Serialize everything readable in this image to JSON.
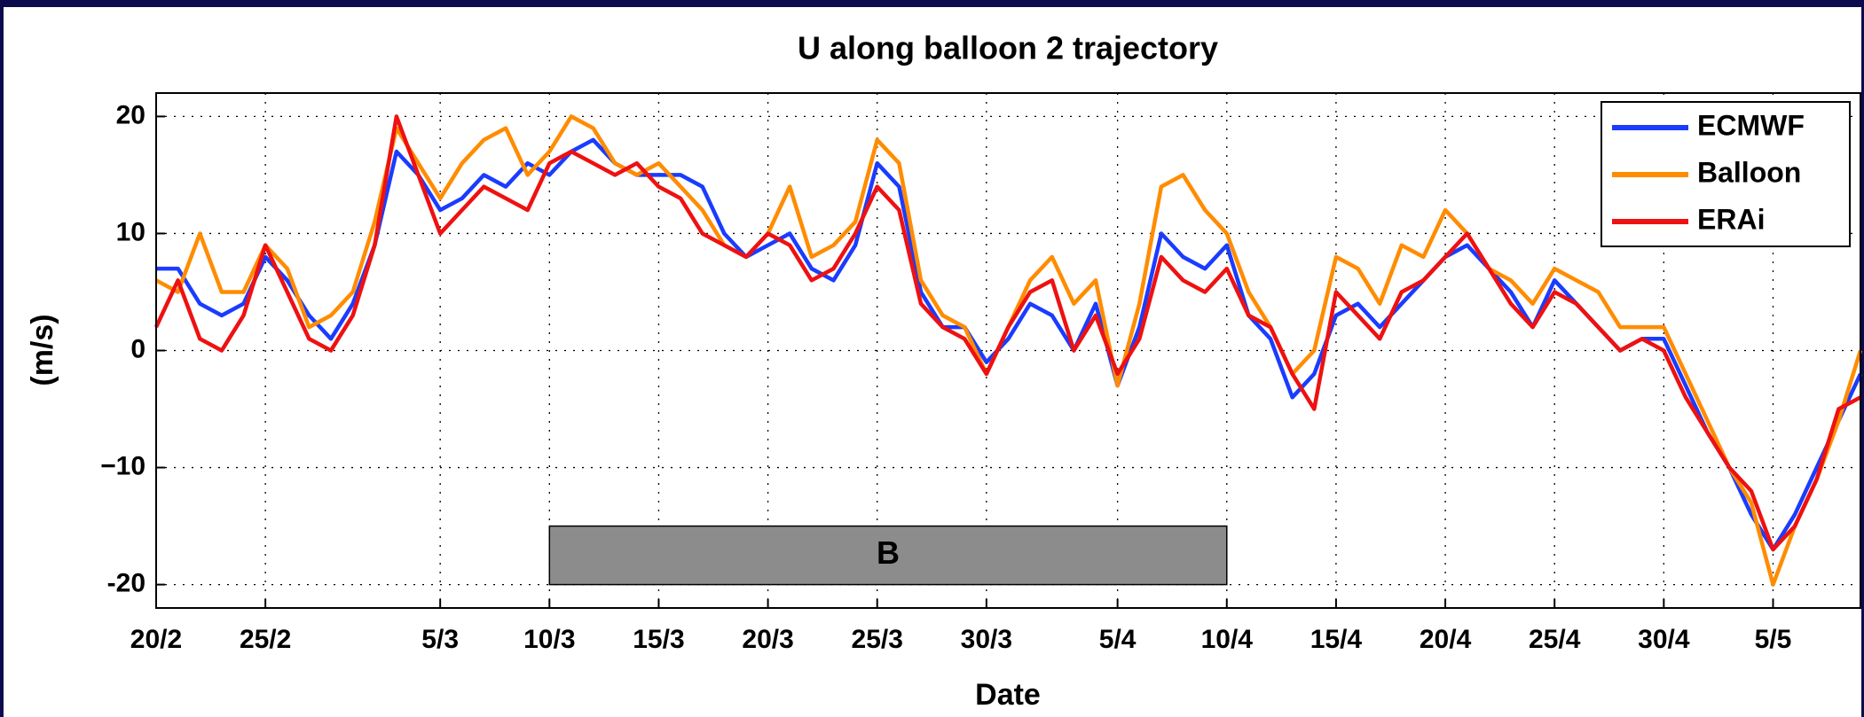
{
  "chart_data": {
    "type": "line",
    "title": "U along balloon 2 trajectory",
    "xlabel": "Date",
    "ylabel": "(m/s)",
    "x": [
      "20/2",
      "21/2",
      "22/2",
      "23/2",
      "24/2",
      "25/2",
      "26/2",
      "27/2",
      "28/2",
      "1/3",
      "2/3",
      "3/3",
      "4/3",
      "5/3",
      "6/3",
      "7/3",
      "8/3",
      "9/3",
      "10/3",
      "11/3",
      "12/3",
      "13/3",
      "14/3",
      "15/3",
      "16/3",
      "17/3",
      "18/3",
      "19/3",
      "20/3",
      "21/3",
      "22/3",
      "23/3",
      "24/3",
      "25/3",
      "26/3",
      "27/3",
      "28/3",
      "29/3",
      "30/3",
      "31/3",
      "1/4",
      "2/4",
      "3/4",
      "4/4",
      "5/4",
      "6/4",
      "7/4",
      "8/4",
      "9/4",
      "10/4",
      "11/4",
      "12/4",
      "13/4",
      "14/4",
      "15/4",
      "16/4",
      "17/4",
      "18/4",
      "19/4",
      "20/4",
      "21/4",
      "22/4",
      "23/4",
      "24/4",
      "25/4",
      "26/4",
      "27/4",
      "28/4",
      "29/4",
      "30/4",
      "1/5",
      "2/5",
      "3/5",
      "4/5",
      "5/5",
      "6/5",
      "7/5",
      "8/5",
      "9/5"
    ],
    "series": [
      {
        "name": "ECMWF",
        "color": "#1a3cff",
        "values": [
          7,
          7,
          4,
          3,
          4,
          8,
          6,
          3,
          1,
          4,
          9,
          17,
          15,
          12,
          13,
          15,
          14,
          16,
          15,
          17,
          18,
          16,
          15,
          15,
          15,
          14,
          10,
          8,
          9,
          10,
          7,
          6,
          9,
          16,
          14,
          5,
          2,
          2,
          -1,
          1,
          4,
          3,
          0,
          4,
          -3,
          2,
          10,
          8,
          7,
          9,
          3,
          1,
          -4,
          -2,
          3,
          4,
          2,
          4,
          6,
          8,
          9,
          7,
          5,
          2,
          6,
          4,
          2,
          0,
          1,
          1,
          -3,
          -7,
          -10,
          -14,
          -17,
          -14,
          -10,
          -6,
          -2
        ]
      },
      {
        "name": "Balloon",
        "color": "#ff8c00",
        "values": [
          6,
          5,
          10,
          5,
          5,
          9,
          7,
          2,
          3,
          5,
          11,
          19,
          16,
          13,
          16,
          18,
          19,
          15,
          17,
          20,
          19,
          16,
          15,
          16,
          14,
          12,
          9,
          8,
          10,
          14,
          8,
          9,
          11,
          18,
          16,
          6,
          3,
          2,
          -2,
          2,
          6,
          8,
          4,
          6,
          -3,
          4,
          14,
          15,
          12,
          10,
          5,
          2,
          -2,
          0,
          8,
          7,
          4,
          9,
          8,
          12,
          10,
          7,
          6,
          4,
          7,
          6,
          5,
          2,
          2,
          2,
          -2,
          -6,
          -10,
          -13,
          -20,
          -15,
          -11,
          -6,
          0
        ]
      },
      {
        "name": "ERAi",
        "color": "#ee1111",
        "values": [
          2,
          6,
          1,
          0,
          3,
          9,
          5,
          1,
          0,
          3,
          9,
          20,
          15,
          10,
          12,
          14,
          13,
          12,
          16,
          17,
          16,
          15,
          16,
          14,
          13,
          10,
          9,
          8,
          10,
          9,
          6,
          7,
          10,
          14,
          12,
          4,
          2,
          1,
          -2,
          2,
          5,
          6,
          0,
          3,
          -2,
          1,
          8,
          6,
          5,
          7,
          3,
          2,
          -2,
          -5,
          5,
          3,
          1,
          5,
          6,
          8,
          10,
          7,
          4,
          2,
          5,
          4,
          2,
          0,
          1,
          0,
          -4,
          -7,
          -10,
          -12,
          -17,
          -15,
          -11,
          -5,
          -4
        ]
      }
    ],
    "xticks": [
      "20/2",
      "25/2",
      "5/3",
      "10/3",
      "15/3",
      "20/3",
      "25/3",
      "30/3",
      "5/4",
      "10/4",
      "15/4",
      "20/4",
      "25/4",
      "30/4",
      "5/5"
    ],
    "ylim": [
      -22,
      22
    ],
    "yticks": [
      -20,
      {
        "value": -10,
        "label": "−10"
      },
      0,
      10,
      20
    ],
    "grid": true,
    "legend": "upper right",
    "annotations": [
      {
        "text": "B",
        "x0": "10/3",
        "x1": "10/4",
        "y0": -20,
        "y1": -15,
        "color": "#8c8c8c"
      }
    ]
  }
}
